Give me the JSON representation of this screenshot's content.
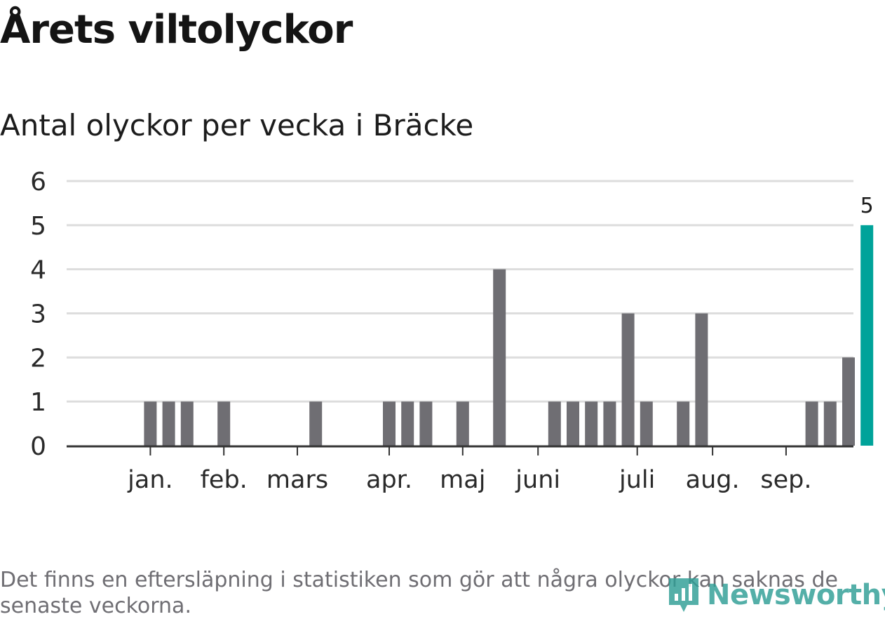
{
  "title": "Årets viltolyckor",
  "subtitle": "Antal olyckor per vecka i Bräcke",
  "footnote": "Det finns en eftersläpning i statistiken som gör att några olyckor kan saknas de senaste veckorna.",
  "logo_text": "Newsworthy",
  "colors": {
    "bar": "#6f6e73",
    "highlight": "#00a39a",
    "grid": "#dddddd",
    "axis": "#333333"
  },
  "chart_data": {
    "type": "bar",
    "ylim": [
      0,
      6
    ],
    "yticks": [
      0,
      1,
      2,
      3,
      4,
      5,
      6
    ],
    "grid": true,
    "x": [
      1,
      2,
      3,
      4,
      5,
      6,
      7,
      8,
      9,
      10,
      11,
      12,
      13,
      14,
      15,
      16,
      17,
      18,
      19,
      20,
      21,
      22,
      23,
      24,
      25,
      26,
      27,
      28,
      29,
      30,
      31,
      32,
      33,
      34,
      35,
      36,
      37,
      38,
      39,
      40,
      41,
      42
    ],
    "values": [
      0,
      0,
      1,
      1,
      1,
      0,
      1,
      0,
      0,
      0,
      0,
      1,
      0,
      0,
      0,
      1,
      1,
      1,
      0,
      1,
      0,
      4,
      0,
      0,
      1,
      1,
      1,
      1,
      3,
      1,
      0,
      1,
      3,
      0,
      0,
      0,
      0,
      0,
      1,
      1,
      2,
      5
    ],
    "highlight_index": 41,
    "data_labels": [
      {
        "index": 41,
        "text": "5"
      }
    ],
    "month_labels": [
      {
        "label": "jan.",
        "week": 3.0
      },
      {
        "label": "feb.",
        "week": 7.0
      },
      {
        "label": "mars",
        "week": 11.0
      },
      {
        "label": "apr.",
        "week": 16.0
      },
      {
        "label": "maj",
        "week": 20.0
      },
      {
        "label": "juni",
        "week": 24.1
      },
      {
        "label": "juli",
        "week": 29.5
      },
      {
        "label": "aug.",
        "week": 33.6
      },
      {
        "label": "sep.",
        "week": 37.6
      }
    ]
  }
}
